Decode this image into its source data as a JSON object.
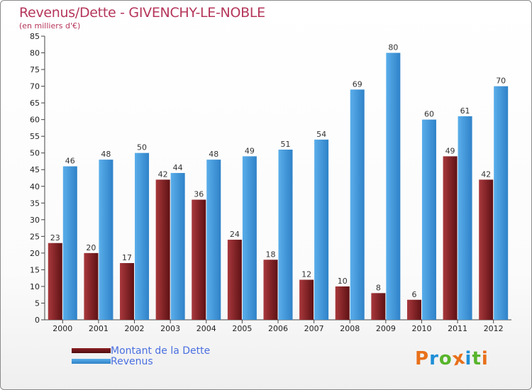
{
  "header": {
    "title": "Revenus/Dette - GIVENCHY-LE-NOBLE",
    "subtitle": "(en milliers d'€)"
  },
  "legend": {
    "debt_label": "Montant de la Dette",
    "revenue_label": "Revenus"
  },
  "logo": {
    "text": "Proxiti",
    "letter_colors": [
      "#e8701a",
      "#1f8fd6",
      "#58b52c",
      "#e8701a",
      "#1f8fd6",
      "#58b52c",
      "#e8701a"
    ]
  },
  "colors": {
    "debt": "#7a1a1e",
    "debt_light": "#a8383c",
    "revenue": "#3a93d8",
    "revenue_light": "#5aaeea",
    "title": "#b5365a",
    "legend_text": "#4a6fe0"
  },
  "chart_data": {
    "type": "bar",
    "title": "Revenus/Dette - GIVENCHY-LE-NOBLE",
    "subtitle": "(en milliers d'€)",
    "xlabel": "",
    "ylabel": "",
    "categories": [
      "2000",
      "2001",
      "2002",
      "2003",
      "2004",
      "2005",
      "2006",
      "2007",
      "2008",
      "2009",
      "2010",
      "2011",
      "2012"
    ],
    "series": [
      {
        "name": "Montant de la Dette",
        "values": [
          23,
          20,
          17,
          42,
          36,
          24,
          18,
          12,
          10,
          8,
          6,
          49,
          42
        ]
      },
      {
        "name": "Revenus",
        "values": [
          46,
          48,
          50,
          44,
          48,
          49,
          51,
          54,
          69,
          80,
          60,
          61,
          70
        ]
      }
    ],
    "ylim": [
      0,
      85
    ],
    "ytick_step": 5,
    "grid": false,
    "legend_position": "bottom-left"
  }
}
